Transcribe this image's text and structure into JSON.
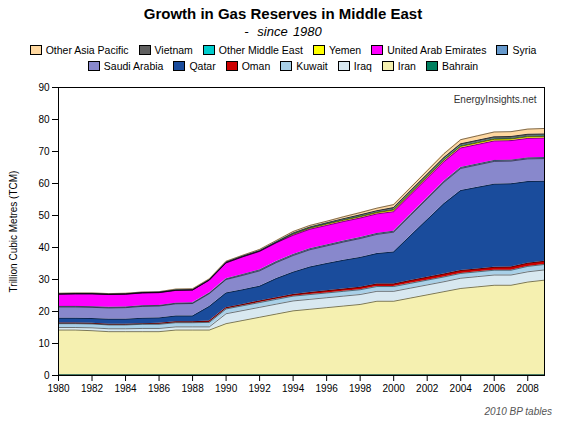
{
  "chart_data": {
    "type": "area",
    "stacked": true,
    "title": "Growth in Gas Reserves in Middle East",
    "subtitle": "-   since  1980",
    "ylabel": "Trillion Cubic Metres (TCM)",
    "annotations": [
      "EnergyInsights.net",
      "2010 BP tables"
    ],
    "legend": "top",
    "grid": false,
    "x": [
      1980,
      1981,
      1982,
      1983,
      1984,
      1985,
      1986,
      1987,
      1988,
      1989,
      1990,
      1991,
      1992,
      1993,
      1994,
      1995,
      1996,
      1997,
      1998,
      1999,
      2000,
      2001,
      2002,
      2003,
      2004,
      2005,
      2006,
      2007,
      2008,
      2009
    ],
    "xlim": [
      1980,
      2009
    ],
    "xticks": [
      1980,
      1982,
      1984,
      1986,
      1988,
      1990,
      1992,
      1994,
      1996,
      1998,
      2000,
      2002,
      2004,
      2006,
      2008
    ],
    "ylim": [
      0,
      90
    ],
    "yticks": [
      0,
      10,
      20,
      30,
      40,
      50,
      60,
      70,
      80,
      90
    ],
    "series": [
      {
        "name": "Bahrain",
        "color": "#008060",
        "values": [
          0.2,
          0.2,
          0.2,
          0.2,
          0.2,
          0.2,
          0.2,
          0.2,
          0.2,
          0.2,
          0.2,
          0.2,
          0.2,
          0.2,
          0.2,
          0.2,
          0.2,
          0.2,
          0.2,
          0.2,
          0.2,
          0.2,
          0.2,
          0.2,
          0.2,
          0.2,
          0.2,
          0.2,
          0.2,
          0.2
        ]
      },
      {
        "name": "Iran",
        "color": "#F5F0B0",
        "values": [
          14.0,
          14.0,
          13.8,
          13.5,
          13.5,
          13.5,
          13.5,
          14.0,
          14.0,
          14.0,
          16.0,
          17.0,
          18.0,
          19.0,
          20.0,
          20.5,
          21.0,
          21.5,
          22.0,
          23.0,
          23.0,
          24.0,
          25.0,
          26.0,
          27.0,
          27.5,
          28.0,
          28.0,
          29.0,
          29.6
        ]
      },
      {
        "name": "Iraq",
        "color": "#D8E8F0",
        "values": [
          0.8,
          0.8,
          0.9,
          0.9,
          0.9,
          1.0,
          1.0,
          1.0,
          1.0,
          1.0,
          3.1,
          3.1,
          3.1,
          3.1,
          3.1,
          3.1,
          3.1,
          3.1,
          3.1,
          3.1,
          3.1,
          3.1,
          3.1,
          3.1,
          3.2,
          3.2,
          3.2,
          3.2,
          3.2,
          3.2
        ]
      },
      {
        "name": "Kuwait",
        "color": "#A8D0E8",
        "values": [
          1.2,
          1.2,
          1.2,
          1.2,
          1.2,
          1.3,
          1.3,
          1.3,
          1.3,
          1.4,
          1.5,
          1.5,
          1.5,
          1.5,
          1.5,
          1.5,
          1.5,
          1.5,
          1.5,
          1.5,
          1.5,
          1.5,
          1.5,
          1.5,
          1.5,
          1.5,
          1.5,
          1.5,
          1.7,
          1.7
        ]
      },
      {
        "name": "Oman",
        "color": "#CC0000",
        "values": [
          0.2,
          0.2,
          0.2,
          0.2,
          0.2,
          0.2,
          0.3,
          0.3,
          0.3,
          0.4,
          0.4,
          0.4,
          0.5,
          0.5,
          0.5,
          0.6,
          0.7,
          0.7,
          0.8,
          0.8,
          0.8,
          0.9,
          0.9,
          0.9,
          0.9,
          0.9,
          0.9,
          1.0,
          1.0,
          1.0
        ]
      },
      {
        "name": "Qatar",
        "color": "#1A4C9C",
        "values": [
          1.5,
          1.5,
          1.5,
          1.6,
          1.6,
          1.7,
          1.7,
          1.8,
          1.8,
          4.6,
          4.6,
          4.6,
          4.6,
          6.0,
          7.0,
          8.0,
          8.5,
          9.0,
          9.3,
          9.5,
          10.0,
          14.0,
          18.0,
          22.0,
          25.0,
          25.5,
          26.0,
          26.0,
          25.5,
          25.0
        ]
      },
      {
        "name": "Saudi Arabia",
        "color": "#8888CC",
        "values": [
          3.5,
          3.5,
          3.5,
          3.5,
          3.6,
          3.7,
          3.7,
          3.8,
          3.9,
          4.0,
          4.2,
          4.5,
          4.8,
          5.0,
          5.2,
          5.4,
          5.5,
          5.7,
          5.9,
          6.0,
          6.2,
          6.3,
          6.5,
          6.7,
          6.9,
          7.0,
          7.1,
          7.1,
          7.1,
          7.1
        ]
      },
      {
        "name": "Syria",
        "color": "#6699CC",
        "values": [
          0.2,
          0.2,
          0.2,
          0.2,
          0.2,
          0.2,
          0.2,
          0.2,
          0.2,
          0.2,
          0.2,
          0.3,
          0.3,
          0.3,
          0.3,
          0.3,
          0.3,
          0.3,
          0.3,
          0.3,
          0.3,
          0.3,
          0.3,
          0.3,
          0.3,
          0.3,
          0.3,
          0.3,
          0.3,
          0.3
        ]
      },
      {
        "name": "United Arab Emirates",
        "color": "#FF00FF",
        "values": [
          3.8,
          3.9,
          4.0,
          4.0,
          4.0,
          4.0,
          4.0,
          4.0,
          4.0,
          4.0,
          5.0,
          5.5,
          5.8,
          5.9,
          6.0,
          6.1,
          6.1,
          6.1,
          6.1,
          6.1,
          6.1,
          6.1,
          6.1,
          6.1,
          6.1,
          6.1,
          6.1,
          6.1,
          6.1,
          6.1
        ]
      },
      {
        "name": "Yemen",
        "color": "#FFFF00",
        "values": [
          0.0,
          0.0,
          0.0,
          0.0,
          0.0,
          0.0,
          0.0,
          0.0,
          0.0,
          0.0,
          0.0,
          0.0,
          0.0,
          0.0,
          0.3,
          0.3,
          0.4,
          0.4,
          0.4,
          0.4,
          0.5,
          0.5,
          0.5,
          0.5,
          0.5,
          0.5,
          0.5,
          0.5,
          0.5,
          0.5
        ]
      },
      {
        "name": "Other Middle East",
        "color": "#00CCCC",
        "values": [
          0.1,
          0.1,
          0.1,
          0.1,
          0.1,
          0.1,
          0.1,
          0.1,
          0.1,
          0.1,
          0.2,
          0.2,
          0.2,
          0.2,
          0.2,
          0.2,
          0.2,
          0.2,
          0.2,
          0.2,
          0.2,
          0.2,
          0.2,
          0.2,
          0.2,
          0.2,
          0.2,
          0.2,
          0.2,
          0.2
        ]
      },
      {
        "name": "Vietnam",
        "color": "#606060",
        "values": [
          0.0,
          0.0,
          0.0,
          0.0,
          0.0,
          0.0,
          0.0,
          0.0,
          0.0,
          0.0,
          0.0,
          0.0,
          0.0,
          0.1,
          0.2,
          0.2,
          0.2,
          0.3,
          0.4,
          0.4,
          0.6,
          0.6,
          0.6,
          0.6,
          0.6,
          0.6,
          0.6,
          0.6,
          0.6,
          0.6
        ]
      },
      {
        "name": "Other Asia Pacific",
        "color": "#FFD8A0",
        "values": [
          0.2,
          0.2,
          0.2,
          0.2,
          0.2,
          0.2,
          0.2,
          0.3,
          0.3,
          0.3,
          0.3,
          0.3,
          0.4,
          0.4,
          0.5,
          0.5,
          0.5,
          0.6,
          0.7,
          0.8,
          0.9,
          1.0,
          1.1,
          1.2,
          1.3,
          1.4,
          1.5,
          1.5,
          1.6,
          1.7
        ]
      }
    ]
  }
}
